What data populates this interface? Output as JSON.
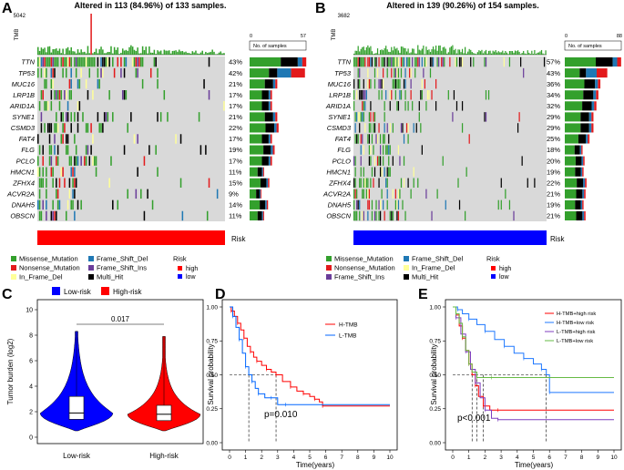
{
  "panels": {
    "A": {
      "label": "A",
      "title": "Altered in 113 (84.96%) of 133 samples.",
      "tmb_label": "TMB",
      "tmb_max": "5042",
      "no_samples_label": "No. of samples",
      "no_samples_min": "0",
      "no_samples_max": "57",
      "risk_label": "Risk"
    },
    "B": {
      "label": "B",
      "title": "Altered in 139 (90.26%) of 154 samples.",
      "tmb_label": "TMB",
      "tmb_max": "3682",
      "no_samples_label": "No. of samples",
      "no_samples_min": "0",
      "no_samples_max": "88",
      "risk_label": "Risk"
    },
    "C": {
      "label": "C",
      "ylabel": "Tumor burden (log2)",
      "p_value": "0.017",
      "categories": [
        "Low-risk",
        "High-risk"
      ],
      "legend": [
        "Low-risk",
        "High-risk"
      ]
    },
    "D": {
      "label": "D",
      "ylabel": "Survival probability",
      "xlabel": "Time(years)",
      "p_value": "p=0.010",
      "legend": [
        "H-TMB",
        "L-TMB"
      ]
    },
    "E": {
      "label": "E",
      "ylabel": "Survival probability",
      "xlabel": "Time(years)",
      "p_value": "p<0.001",
      "legend": [
        "H-TMB+high risk",
        "H-TMB+low risk",
        "L-TMB+high risk",
        "L-TMB+low risk"
      ]
    }
  },
  "mut_legend": {
    "A": [
      "Missense_Mutation",
      "Frame_Shift_Del",
      "Nonsense_Mutation",
      "Frame_Shift_Ins",
      "In_Frame_Del",
      "Multi_Hit"
    ],
    "B": [
      "Missense_Mutation",
      "Frame_Shift_Del",
      "Nonsense_Mutation",
      "In_Frame_Del",
      "Frame_Shift_Ins",
      "Multi_Hit"
    ],
    "risk_title": "Risk",
    "risk_levels": [
      "high",
      "low"
    ]
  },
  "colors": {
    "Missense_Mutation": "#33a02c",
    "Frame_Shift_Del": "#1f78b4",
    "Nonsense_Mutation": "#e31a1c",
    "Frame_Shift_Ins": "#6a3d9a",
    "In_Frame_Del": "#ffff99",
    "Multi_Hit": "#000000",
    "high": "#ff0000",
    "low": "#0000ff",
    "bg": "#d9d9d9"
  },
  "chart_data": [
    {
      "type": "oncoplot",
      "panel": "A",
      "title": "Altered in 113 (84.96%) of 133 samples.",
      "genes": [
        "TTN",
        "TP53",
        "MUC16",
        "LRP1B",
        "ARID1A",
        "SYNE1",
        "CSMD3",
        "FAT4",
        "FLG",
        "PCLO",
        "HMCN1",
        "ZFHX4",
        "ACVR2A",
        "DNAH5",
        "OBSCN"
      ],
      "percents": [
        "43%",
        "42%",
        "21%",
        "17%",
        "17%",
        "21%",
        "22%",
        "17%",
        "19%",
        "17%",
        "11%",
        "15%",
        "9%",
        "14%",
        "11%"
      ],
      "values": [
        43,
        42,
        21,
        17,
        17,
        21,
        22,
        17,
        19,
        17,
        11,
        15,
        9,
        14,
        11
      ],
      "xlim": [
        0,
        57
      ],
      "tmb_max": 5042,
      "risk": "high"
    },
    {
      "type": "oncoplot",
      "panel": "B",
      "title": "Altered in 139 (90.26%) of 154 samples.",
      "genes": [
        "TTN",
        "TP53",
        "MUC16",
        "LRP1B",
        "ARID1A",
        "SYNE1",
        "CSMD3",
        "FAT4",
        "FLG",
        "PCLO",
        "HMCN1",
        "ZFHX4",
        "ACVR2A",
        "DNAH5",
        "OBSCN"
      ],
      "percents": [
        "57%",
        "43%",
        "36%",
        "34%",
        "32%",
        "29%",
        "29%",
        "25%",
        "18%",
        "20%",
        "19%",
        "22%",
        "21%",
        "19%",
        "21%"
      ],
      "values": [
        57,
        43,
        36,
        34,
        32,
        29,
        29,
        25,
        18,
        20,
        19,
        22,
        21,
        19,
        21
      ],
      "xlim": [
        0,
        88
      ],
      "tmb_max": 3682,
      "risk": "low"
    },
    {
      "type": "violin",
      "panel": "C",
      "ylabel": "Tumor burden (log2)",
      "categories": [
        "Low-risk",
        "High-risk"
      ],
      "ylim": [
        0,
        10
      ],
      "yticks": [
        0,
        2,
        4,
        6,
        8,
        10
      ],
      "series": [
        {
          "name": "Low-risk",
          "color": "#0000ff",
          "min": 0.5,
          "q1": 1.4,
          "median": 1.9,
          "q3": 3.2,
          "max": 8.3
        },
        {
          "name": "High-risk",
          "color": "#ff0000",
          "min": 0.5,
          "q1": 1.3,
          "median": 1.8,
          "q3": 2.5,
          "max": 7.9
        }
      ],
      "p_value": 0.017
    },
    {
      "type": "line",
      "panel": "D",
      "title": "",
      "xlabel": "Time(years)",
      "ylabel": "Survival probability",
      "xlim": [
        0,
        10
      ],
      "ylim": [
        0,
        1
      ],
      "xticks": [
        0,
        1,
        2,
        3,
        4,
        5,
        6,
        7,
        8,
        9,
        10
      ],
      "yticks": [
        0,
        0.25,
        0.5,
        0.75,
        1.0
      ],
      "p_value": "p=0.010",
      "median": [
        1.2,
        2.9
      ],
      "series": [
        {
          "name": "H-TMB",
          "color": "#ff0000",
          "x": [
            0,
            0.1,
            0.3,
            0.5,
            0.7,
            0.9,
            1.1,
            1.3,
            1.5,
            1.7,
            2.0,
            2.3,
            2.6,
            2.9,
            3.3,
            3.8,
            4.2,
            4.6,
            5.0,
            5.3,
            5.6,
            5.8,
            6.1,
            10
          ],
          "y": [
            1,
            0.97,
            0.93,
            0.88,
            0.83,
            0.77,
            0.71,
            0.67,
            0.63,
            0.6,
            0.57,
            0.54,
            0.52,
            0.5,
            0.45,
            0.41,
            0.38,
            0.36,
            0.34,
            0.32,
            0.3,
            0.27,
            0.27,
            0.27
          ]
        },
        {
          "name": "L-TMB",
          "color": "#0066ff",
          "x": [
            0,
            0.2,
            0.4,
            0.6,
            0.8,
            1.0,
            1.2,
            1.4,
            1.6,
            1.8,
            2.2,
            2.6,
            3.0,
            3.5,
            10
          ],
          "y": [
            1,
            0.93,
            0.85,
            0.76,
            0.66,
            0.56,
            0.5,
            0.45,
            0.4,
            0.36,
            0.33,
            0.33,
            0.28,
            0.28,
            0.28
          ]
        }
      ]
    },
    {
      "type": "line",
      "panel": "E",
      "title": "",
      "xlabel": "Time(years)",
      "ylabel": "Survival probability",
      "xlim": [
        0,
        10
      ],
      "ylim": [
        0,
        1
      ],
      "xticks": [
        0,
        1,
        2,
        3,
        4,
        5,
        6,
        7,
        8,
        9,
        10
      ],
      "yticks": [
        0,
        0.25,
        0.5,
        0.75,
        1.0
      ],
      "p_value": "p<0.001",
      "median": [
        1.2,
        1.5,
        1.9,
        5.8
      ],
      "series": [
        {
          "name": "H-TMB+high risk",
          "color": "#ff0000",
          "x": [
            0,
            0.2,
            0.4,
            0.6,
            0.8,
            1.0,
            1.2,
            1.4,
            1.6,
            1.9,
            2.3,
            2.8,
            3.2,
            10
          ],
          "y": [
            1,
            0.94,
            0.86,
            0.77,
            0.68,
            0.58,
            0.5,
            0.42,
            0.34,
            0.27,
            0.24,
            0.24,
            0.24,
            0.24
          ]
        },
        {
          "name": "H-TMB+low risk",
          "color": "#1f78ff",
          "x": [
            0,
            0.3,
            0.6,
            1.0,
            1.5,
            2.0,
            2.6,
            3.2,
            3.8,
            4.4,
            5.0,
            5.5,
            5.8,
            6.0,
            10
          ],
          "y": [
            1,
            0.98,
            0.95,
            0.91,
            0.87,
            0.82,
            0.76,
            0.71,
            0.66,
            0.62,
            0.58,
            0.54,
            0.5,
            0.37,
            0.37
          ]
        },
        {
          "name": "L-TMB+high risk",
          "color": "#7f3fbf",
          "x": [
            0,
            0.2,
            0.5,
            0.8,
            1.1,
            1.4,
            1.7,
            2.0,
            2.4,
            2.8,
            3.2,
            10
          ],
          "y": [
            1,
            0.92,
            0.8,
            0.67,
            0.54,
            0.44,
            0.33,
            0.24,
            0.18,
            0.17,
            0.17,
            0.17
          ]
        },
        {
          "name": "L-TMB+low risk",
          "color": "#66bb44",
          "x": [
            0,
            0.2,
            0.4,
            0.6,
            0.8,
            1.0,
            1.2,
            1.5,
            2.0,
            2.4,
            10
          ],
          "y": [
            1,
            0.95,
            0.88,
            0.78,
            0.68,
            0.58,
            0.52,
            0.48,
            0.48,
            0.48,
            0.48
          ]
        }
      ]
    }
  ]
}
